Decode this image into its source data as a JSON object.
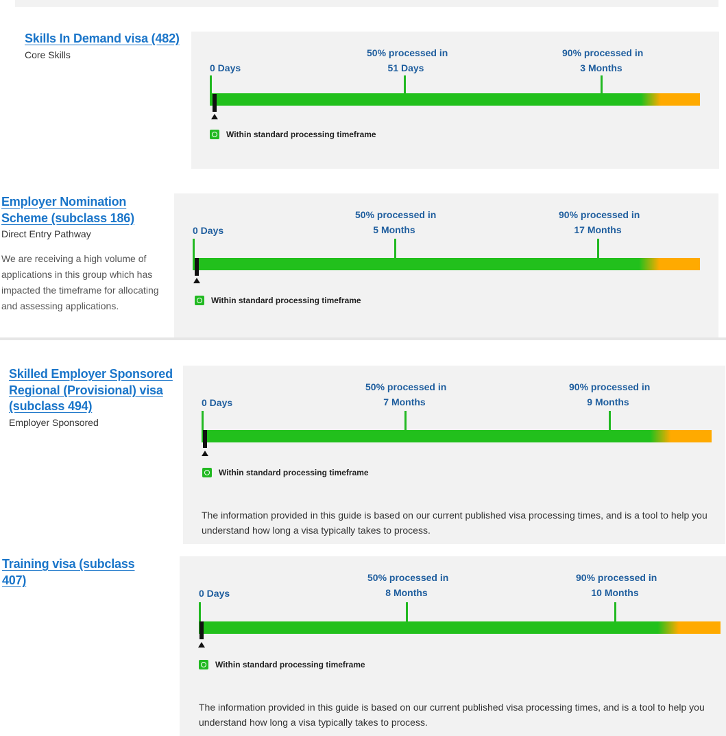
{
  "sections": [
    {
      "title": "Skills In Demand visa (482)",
      "subtitle": "Core Skills",
      "labels": {
        "zero": "0 Days",
        "p50_line1": "50% processed in",
        "p50_line2": "51 Days",
        "p90_line1": "90% processed in",
        "p90_line2": "3 Months"
      },
      "status": "Within standard processing timeframe"
    },
    {
      "title": "Employer Nomination Scheme (subclass 186)",
      "subtitle": "Direct Entry Pathway",
      "note": "We are receiving a high volume of applications in this group which has impacted the timeframe for allocating and assessing applications.",
      "labels": {
        "zero": "0 Days",
        "p50_line1": "50% processed in",
        "p50_line2": "5 Months",
        "p90_line1": "90% processed in",
        "p90_line2": "17 Months"
      },
      "status": "Within standard processing timeframe"
    },
    {
      "title": "Skilled Employer Sponsored Regional (Provisional) visa (subclass 494)",
      "subtitle": "Employer Sponsored",
      "labels": {
        "zero": "0 Days",
        "p50_line1": "50% processed in",
        "p50_line2": "7 Months",
        "p90_line1": "90% processed in",
        "p90_line2": "9 Months"
      },
      "status": "Within standard processing timeframe",
      "info": "The information provided in this guide is based on our current published visa processing times, and is a tool to help you understand how long a visa typically takes to process."
    },
    {
      "title": "Training visa (subclass 407)",
      "labels": {
        "zero": "0 Days",
        "p50_line1": "50% processed in",
        "p50_line2": "8 Months",
        "p90_line1": "90% processed in",
        "p90_line2": "10 Months"
      },
      "status": "Within standard processing timeframe",
      "info": "The information provided in this guide is based on our current published visa processing times, and is a tool to help you understand how long a visa typically takes to process."
    }
  ],
  "colors": {
    "link": "#1a75c9",
    "label": "#1f5e9e",
    "bar_green": "#22c01c",
    "bar_orange": "#ffaa00",
    "panel": "#f2f2f2"
  },
  "icons": {
    "status": "stopwatch-check-icon",
    "marker": "triangle-up-icon"
  }
}
